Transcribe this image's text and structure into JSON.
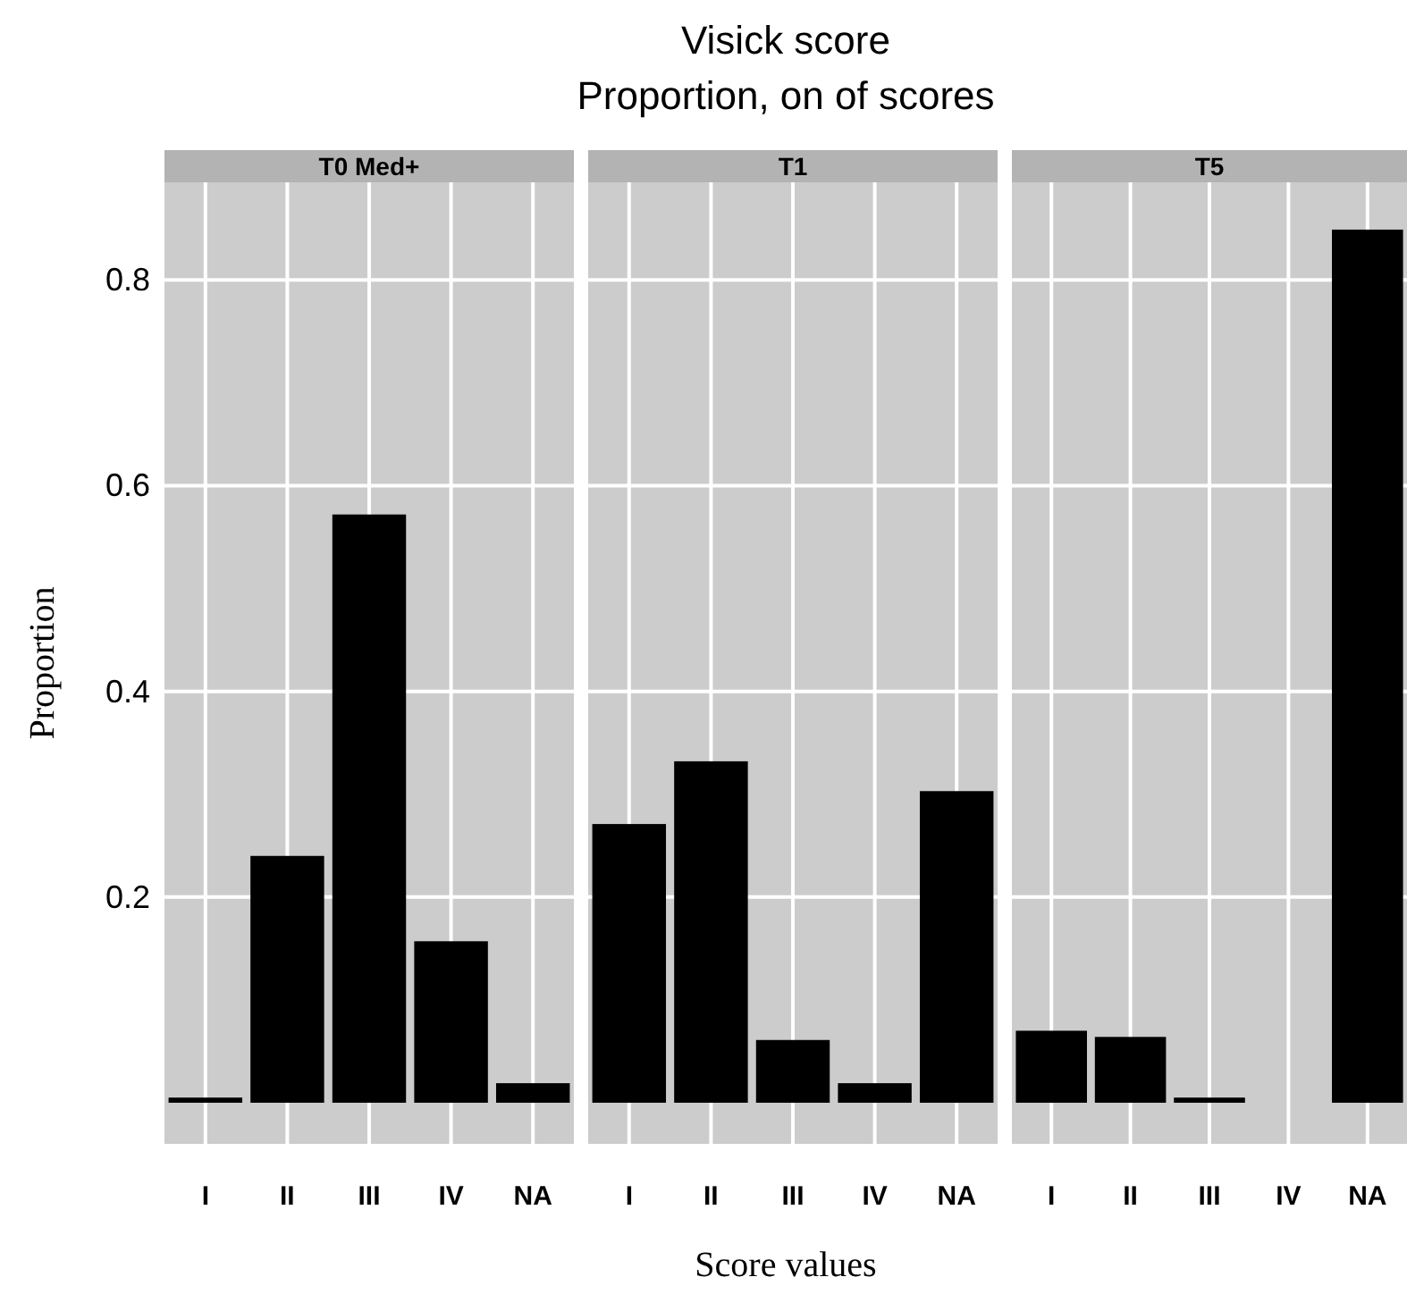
{
  "chart_data": [
    {
      "type": "other",
      "title": "Visick score",
      "subtitle": "Proportion, on of scores"
    },
    {
      "type": "bar",
      "title": "T0 Med+",
      "ylabel": "Proportion",
      "categories": [
        "I",
        "II",
        "III",
        "IV",
        "NA"
      ],
      "values": [
        0.005,
        0.24,
        0.572,
        0.157,
        0.019
      ],
      "color": "#000000",
      "ylim": [
        -0.04,
        0.895
      ],
      "yticks": [
        0.2,
        0.4,
        0.6,
        0.8
      ],
      "grid": true
    },
    {
      "type": "bar",
      "title": "T1",
      "xlabel": "Score values",
      "categories": [
        "I",
        "II",
        "III",
        "IV",
        "NA"
      ],
      "values": [
        0.271,
        0.332,
        0.061,
        0.019,
        0.303
      ],
      "color": "#000000",
      "ylim": [
        -0.04,
        0.895
      ],
      "yticks": [
        0.2,
        0.4,
        0.6,
        0.8
      ],
      "grid": true,
      "tick_labels": "x"
    },
    {
      "type": "bar",
      "title": "T5",
      "categories": [
        "I",
        "II",
        "III",
        "IV",
        "NA"
      ],
      "values": [
        0.07,
        0.064,
        0.005,
        0,
        0.849
      ],
      "color": "#000000",
      "ylim": [
        -0.04,
        0.895
      ],
      "yticks": [
        0.2,
        0.4,
        0.6,
        0.8
      ],
      "grid": true,
      "tick_labels": "x"
    }
  ]
}
